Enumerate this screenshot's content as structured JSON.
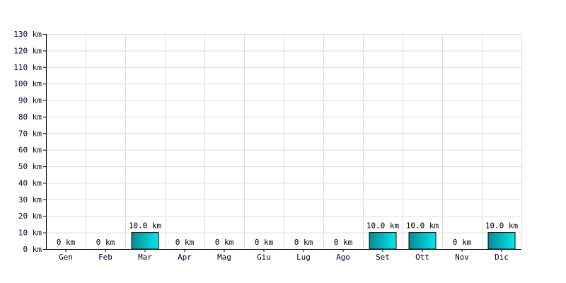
{
  "chart_data": {
    "type": "bar",
    "categories": [
      "Gen",
      "Feb",
      "Mar",
      "Apr",
      "Mag",
      "Giu",
      "Lug",
      "Ago",
      "Set",
      "Ott",
      "Nov",
      "Dic"
    ],
    "values": [
      0,
      0,
      10,
      0,
      0,
      0,
      0,
      0,
      10,
      10,
      0,
      10
    ],
    "data_labels": [
      "0 km",
      "0 km",
      "10.0 km",
      "0 km",
      "0 km",
      "0 km",
      "0 km",
      "0 km",
      "10.0 km",
      "10.0 km",
      "0 km",
      "10.0 km"
    ],
    "y_ticks": [
      0,
      10,
      20,
      30,
      40,
      50,
      60,
      70,
      80,
      90,
      100,
      110,
      120,
      130
    ],
    "y_unit": "km",
    "ylim": [
      0,
      130
    ],
    "grid": true,
    "title": "",
    "xlabel": "",
    "ylabel": "",
    "colors": {
      "bar_dark": "#0a8a92",
      "bar_light": "#00e8f0",
      "bar_stroke": "#000000",
      "grid": "#dddddd",
      "axis": "#000000",
      "tick_text": "#000033"
    }
  }
}
